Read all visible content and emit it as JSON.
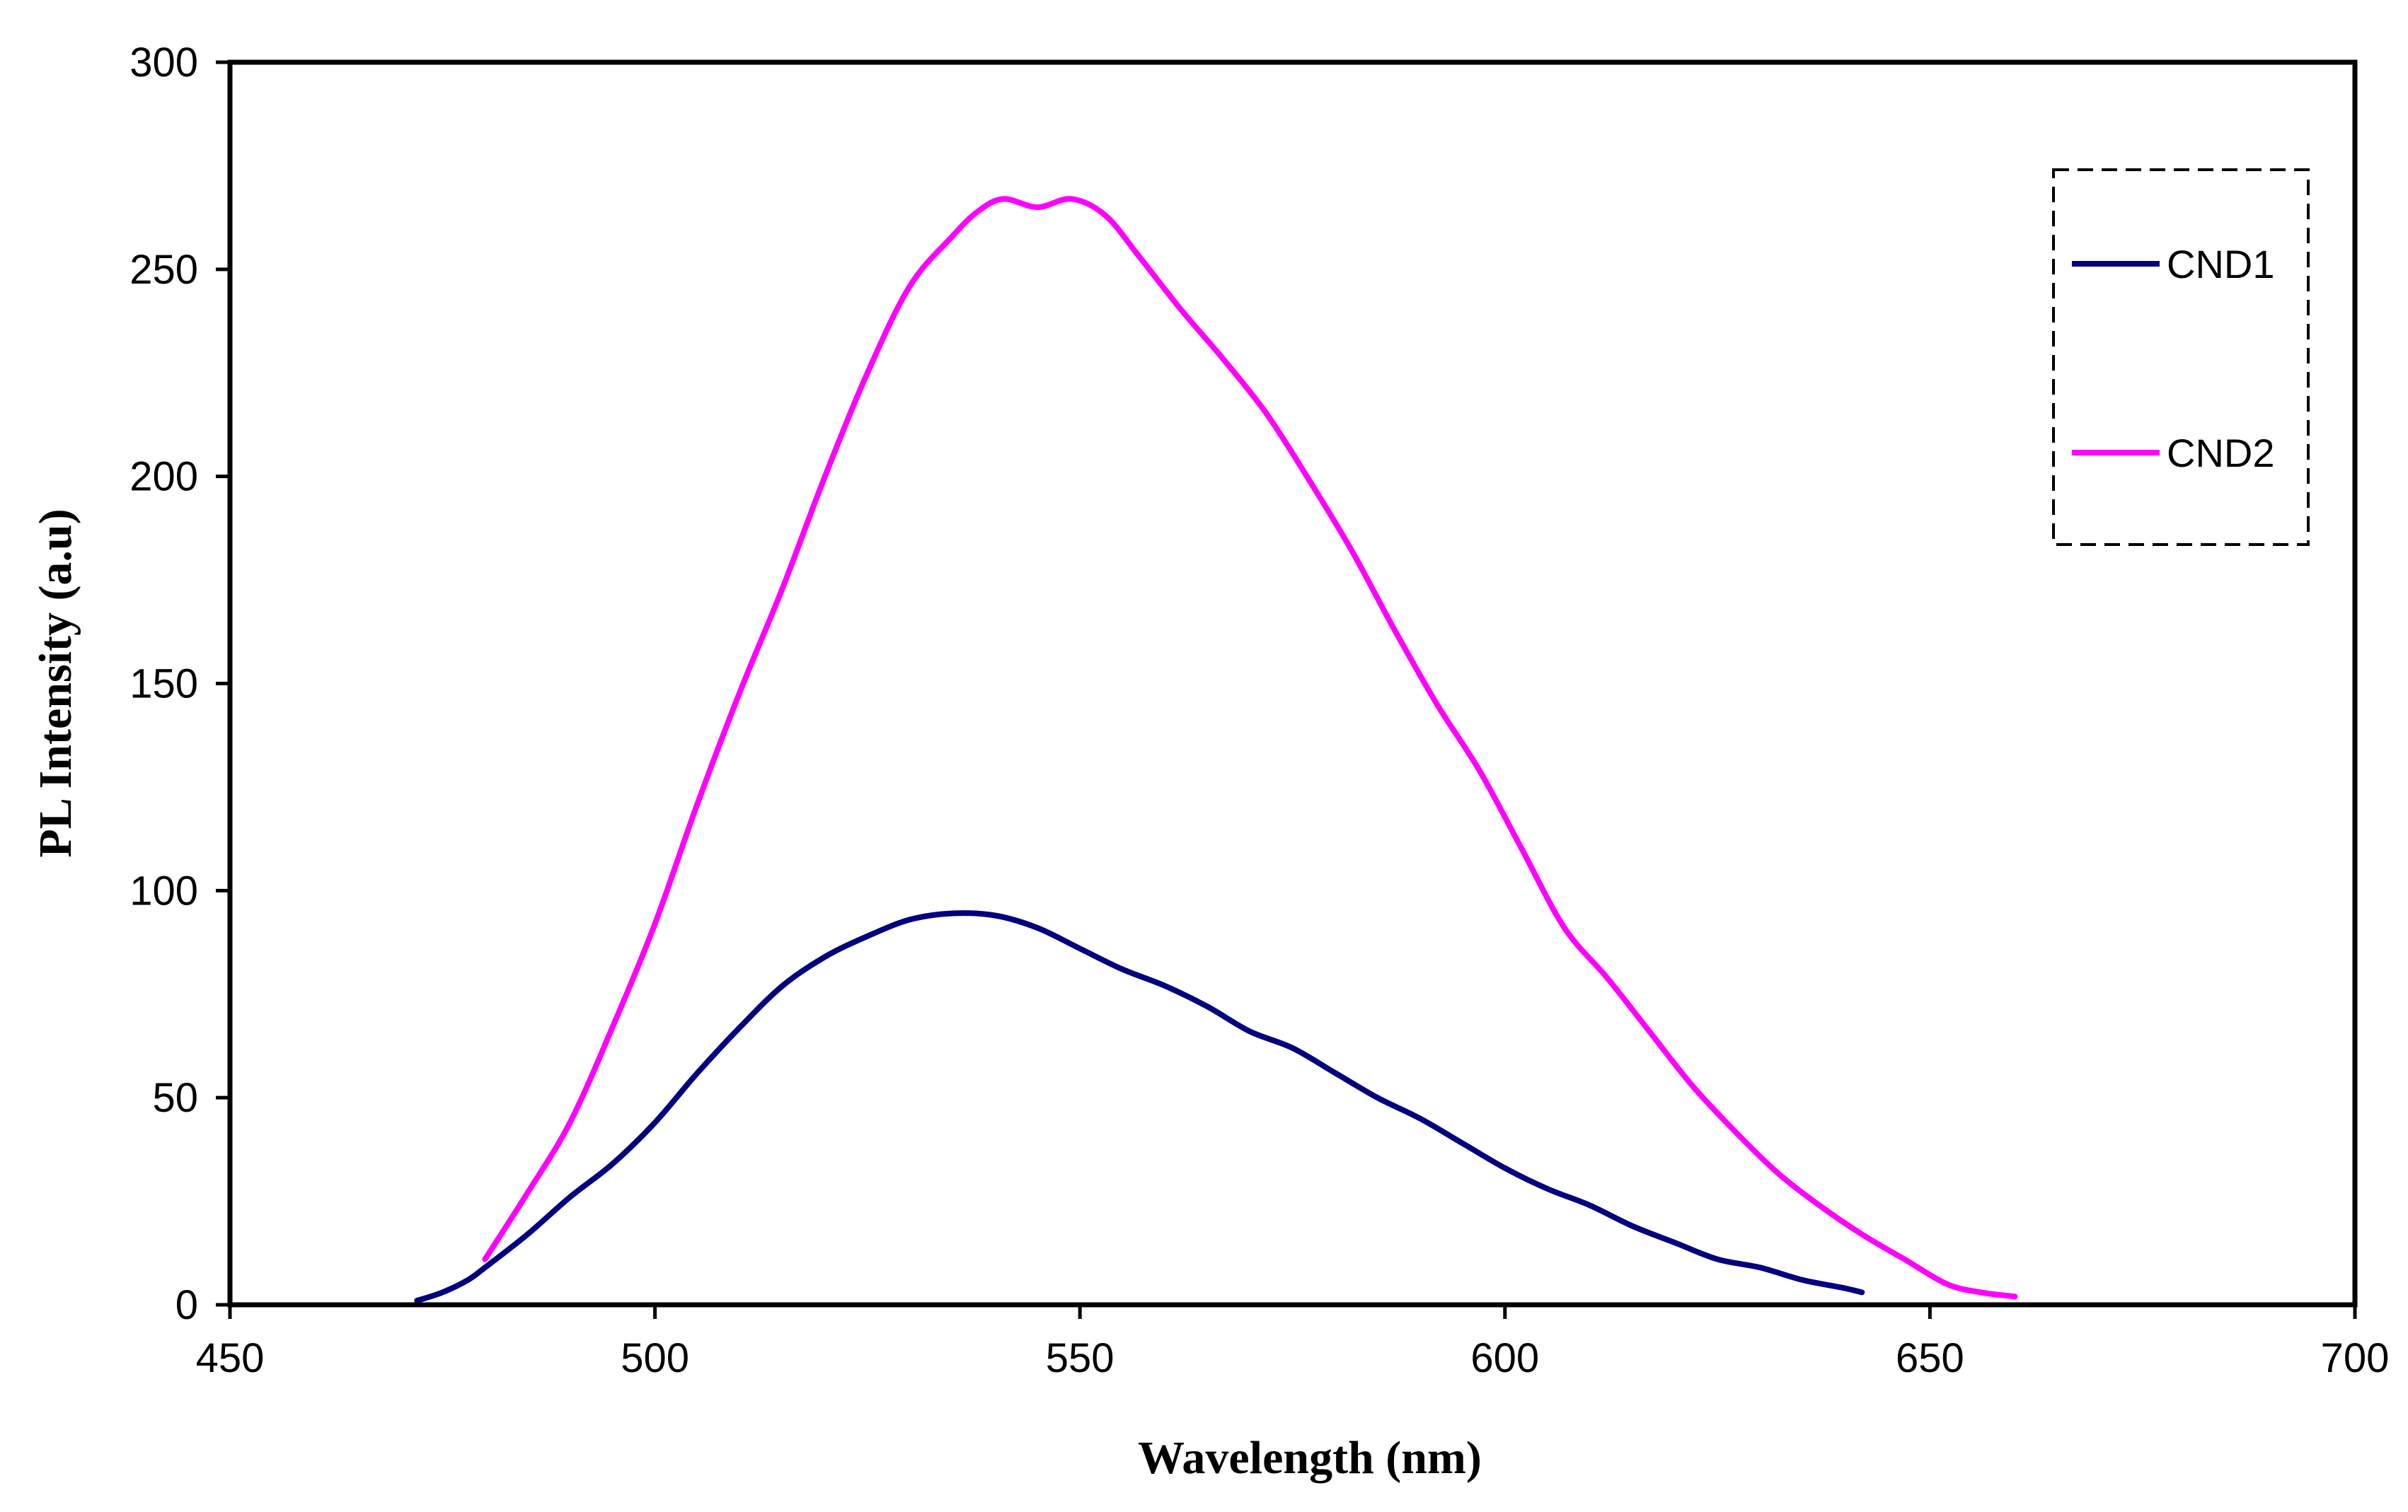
{
  "chart_data": {
    "type": "line",
    "title": "",
    "xlabel": "Wavelength (nm)",
    "ylabel": "PL Intensity (a.u)",
    "xlim": [
      450,
      700
    ],
    "ylim": [
      0,
      300
    ],
    "xticks": [
      450,
      500,
      550,
      600,
      650,
      700
    ],
    "yticks": [
      0,
      50,
      100,
      150,
      200,
      250,
      300
    ],
    "grid": false,
    "legend_position": "top-right",
    "series": [
      {
        "name": "CND1",
        "color": "#000080",
        "x": [
          472,
          475,
          478,
          480,
          485,
          490,
          495,
          500,
          505,
          510,
          515,
          520,
          525,
          530,
          535,
          540,
          545,
          550,
          555,
          560,
          565,
          570,
          575,
          580,
          585,
          590,
          595,
          600,
          605,
          610,
          615,
          620,
          625,
          630,
          635,
          640,
          642
        ],
        "y": [
          1,
          3,
          6,
          9,
          17,
          26,
          34,
          44,
          56,
          67,
          77,
          84,
          89,
          93,
          94.5,
          94,
          91,
          86,
          81,
          77,
          72,
          66,
          62,
          56,
          50,
          45,
          39,
          33,
          28,
          24,
          19,
          15,
          11,
          9,
          6,
          4,
          3
        ]
      },
      {
        "name": "CND2",
        "color": "#FF00FF",
        "x": [
          480,
          485,
          490,
          495,
          500,
          505,
          510,
          515,
          520,
          525,
          530,
          535,
          538,
          541,
          545,
          549,
          553,
          557,
          562,
          567,
          572,
          577,
          582,
          587,
          592,
          597,
          602,
          607,
          612,
          617,
          622,
          627,
          632,
          637,
          642,
          647,
          652,
          656,
          660
        ],
        "y": [
          11,
          27,
          44,
          67,
          92,
          121,
          148,
          173,
          200,
          225,
          246,
          258,
          264,
          267,
          265,
          267,
          263,
          253,
          240,
          228,
          215,
          199,
          182,
          163,
          145,
          129,
          110,
          91,
          79,
          66,
          53,
          42,
          32,
          24,
          17,
          11,
          5,
          3,
          2
        ]
      }
    ]
  }
}
